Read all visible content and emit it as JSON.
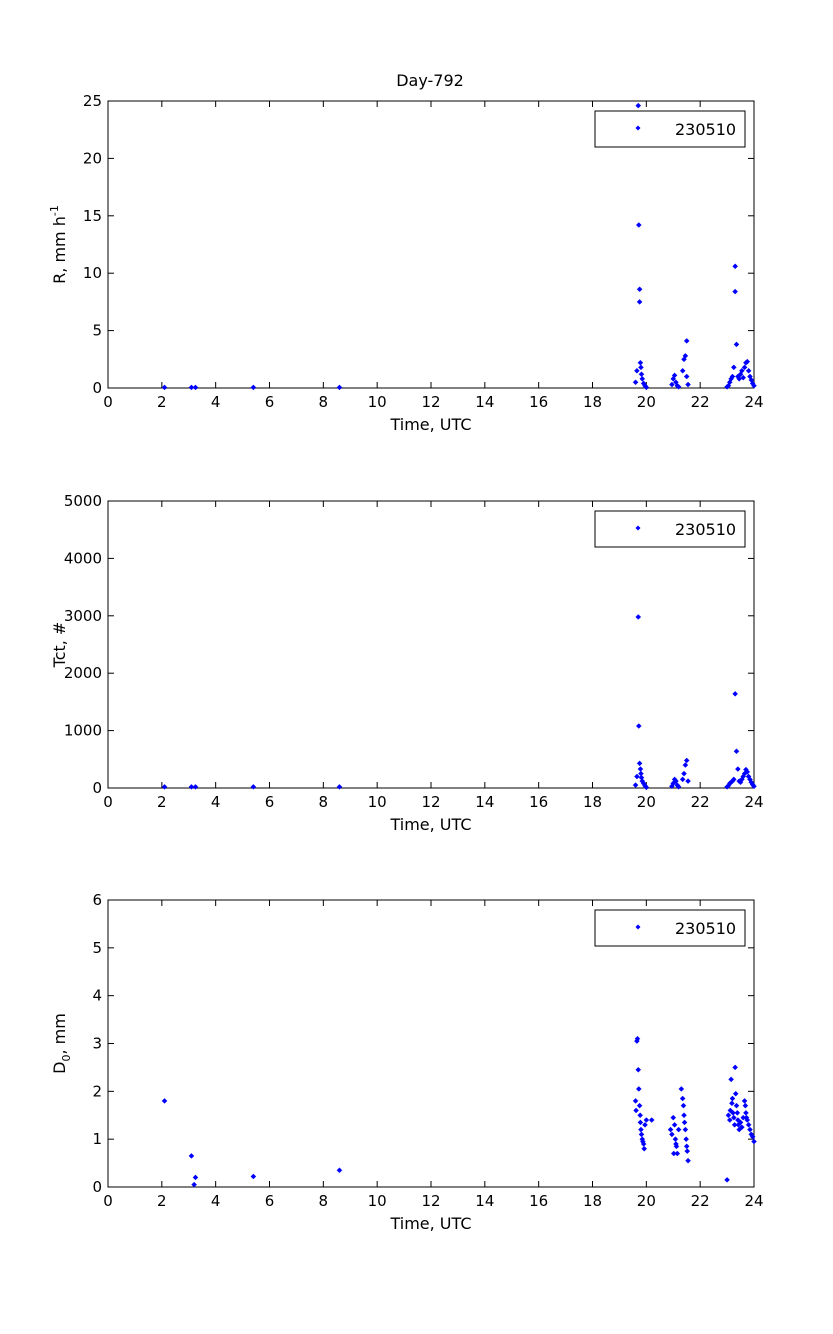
{
  "figure": {
    "title": "Day-792"
  },
  "chart_data": [
    {
      "type": "scatter",
      "xlabel": "Time, UTC",
      "ylabel": "R, mm h",
      "ylabel_sup": "-1",
      "xlim": [
        0,
        24
      ],
      "ylim": [
        0,
        25
      ],
      "xticks": [
        "0",
        "2",
        "4",
        "6",
        "8",
        "10",
        "12",
        "14",
        "16",
        "18",
        "20",
        "22",
        "24"
      ],
      "yticks": [
        "0",
        "5",
        "10",
        "15",
        "20",
        "25"
      ],
      "grid": false,
      "legend": "top-right",
      "series": [
        {
          "name": "230510",
          "color": "#0000ff",
          "x": [
            2.1,
            3.1,
            3.25,
            5.4,
            8.6,
            19.6,
            19.65,
            19.7,
            19.7,
            19.72,
            19.75,
            19.75,
            19.78,
            19.8,
            19.82,
            19.85,
            19.9,
            19.95,
            20.0,
            20.95,
            21.0,
            21.05,
            21.1,
            21.15,
            21.2,
            21.35,
            21.4,
            21.45,
            21.5,
            21.5,
            21.55,
            23.0,
            23.05,
            23.1,
            23.15,
            23.2,
            23.25,
            23.3,
            23.3,
            23.35,
            23.4,
            23.45,
            23.5,
            23.55,
            23.6,
            23.65,
            23.7,
            23.75,
            23.8,
            23.85,
            23.9,
            23.95,
            24.0
          ],
          "y": [
            0.05,
            0.05,
            0.05,
            0.05,
            0.05,
            0.5,
            1.5,
            24.6,
            22.6,
            14.2,
            8.6,
            7.5,
            2.2,
            1.8,
            1.2,
            0.8,
            0.4,
            0.2,
            0.05,
            0.3,
            0.8,
            1.1,
            0.5,
            0.2,
            0.1,
            1.5,
            2.5,
            2.8,
            4.1,
            1.0,
            0.3,
            0.1,
            0.2,
            0.5,
            0.8,
            1.0,
            1.8,
            10.6,
            8.4,
            3.8,
            1.0,
            0.8,
            1.2,
            1.5,
            0.9,
            1.8,
            2.2,
            2.3,
            1.5,
            1.0,
            0.7,
            0.4,
            0.2
          ]
        }
      ]
    },
    {
      "type": "scatter",
      "xlabel": "Time, UTC",
      "ylabel": "Tct, #",
      "xlim": [
        0,
        24
      ],
      "ylim": [
        0,
        5000
      ],
      "xticks": [
        "0",
        "2",
        "4",
        "6",
        "8",
        "10",
        "12",
        "14",
        "16",
        "18",
        "20",
        "22",
        "24"
      ],
      "yticks": [
        "0",
        "1000",
        "2000",
        "3000",
        "4000",
        "5000"
      ],
      "grid": false,
      "legend": "top-right",
      "series": [
        {
          "name": "230510",
          "color": "#0000ff",
          "x": [
            2.1,
            3.1,
            3.25,
            5.4,
            8.6,
            19.6,
            19.65,
            19.7,
            19.72,
            19.75,
            19.78,
            19.8,
            19.82,
            19.85,
            19.9,
            19.95,
            20.0,
            20.95,
            21.0,
            21.05,
            21.1,
            21.15,
            21.2,
            21.35,
            21.4,
            21.45,
            21.5,
            21.55,
            23.0,
            23.05,
            23.1,
            23.15,
            23.2,
            23.25,
            23.3,
            23.35,
            23.4,
            23.45,
            23.5,
            23.55,
            23.6,
            23.65,
            23.7,
            23.75,
            23.8,
            23.85,
            23.9,
            23.95,
            24.0
          ],
          "y": [
            20,
            20,
            20,
            20,
            20,
            50,
            200,
            2980,
            1080,
            430,
            330,
            250,
            180,
            120,
            80,
            40,
            10,
            30,
            80,
            150,
            120,
            50,
            20,
            150,
            250,
            400,
            480,
            120,
            20,
            40,
            80,
            100,
            120,
            150,
            1640,
            640,
            330,
            120,
            100,
            150,
            200,
            250,
            320,
            280,
            200,
            150,
            100,
            60,
            30
          ]
        }
      ]
    },
    {
      "type": "scatter",
      "xlabel": "Time, UTC",
      "ylabel": "D",
      "ylabel_sub": "0",
      "ylabel_suffix": ", mm",
      "xlim": [
        0,
        24
      ],
      "ylim": [
        0,
        6
      ],
      "xticks": [
        "0",
        "2",
        "4",
        "6",
        "8",
        "10",
        "12",
        "14",
        "16",
        "18",
        "20",
        "22",
        "24"
      ],
      "yticks": [
        "0",
        "1",
        "2",
        "3",
        "4",
        "5",
        "6"
      ],
      "grid": false,
      "legend": "top-right",
      "series": [
        {
          "name": "230510",
          "color": "#0000ff",
          "x": [
            2.1,
            3.1,
            3.2,
            3.25,
            5.4,
            8.6,
            19.6,
            19.62,
            19.65,
            19.67,
            19.7,
            19.72,
            19.75,
            19.77,
            19.78,
            19.8,
            19.82,
            19.85,
            19.87,
            19.9,
            19.92,
            19.95,
            20.0,
            20.2,
            20.9,
            20.95,
            21.0,
            21.02,
            21.05,
            21.08,
            21.1,
            21.12,
            21.15,
            21.2,
            21.3,
            21.35,
            21.38,
            21.4,
            21.42,
            21.45,
            21.48,
            21.5,
            21.52,
            21.55,
            23.0,
            23.05,
            23.1,
            23.12,
            23.15,
            23.18,
            23.2,
            23.22,
            23.25,
            23.28,
            23.3,
            23.32,
            23.35,
            23.38,
            23.4,
            23.42,
            23.45,
            23.5,
            23.55,
            23.6,
            23.65,
            23.68,
            23.7,
            23.72,
            23.75,
            23.8,
            23.85,
            23.9,
            23.95,
            24.0
          ],
          "y": [
            1.8,
            0.65,
            0.05,
            0.2,
            0.22,
            0.35,
            1.8,
            1.6,
            3.05,
            3.1,
            2.45,
            2.05,
            1.7,
            1.5,
            1.35,
            1.2,
            1.1,
            1.0,
            0.95,
            0.9,
            0.8,
            1.3,
            1.4,
            1.4,
            1.2,
            1.1,
            1.45,
            0.7,
            1.3,
            1.0,
            0.9,
            0.85,
            0.7,
            1.2,
            2.05,
            1.85,
            1.7,
            1.5,
            1.35,
            1.2,
            1.0,
            0.85,
            0.75,
            0.55,
            0.15,
            1.5,
            1.4,
            1.6,
            2.25,
            1.75,
            1.85,
            1.55,
            1.45,
            1.3,
            2.5,
            1.95,
            1.7,
            1.55,
            1.4,
            1.3,
            1.2,
            1.35,
            1.25,
            1.45,
            1.8,
            1.7,
            1.55,
            1.45,
            1.4,
            1.3,
            1.2,
            1.1,
            1.05,
            0.95
          ]
        }
      ]
    }
  ]
}
